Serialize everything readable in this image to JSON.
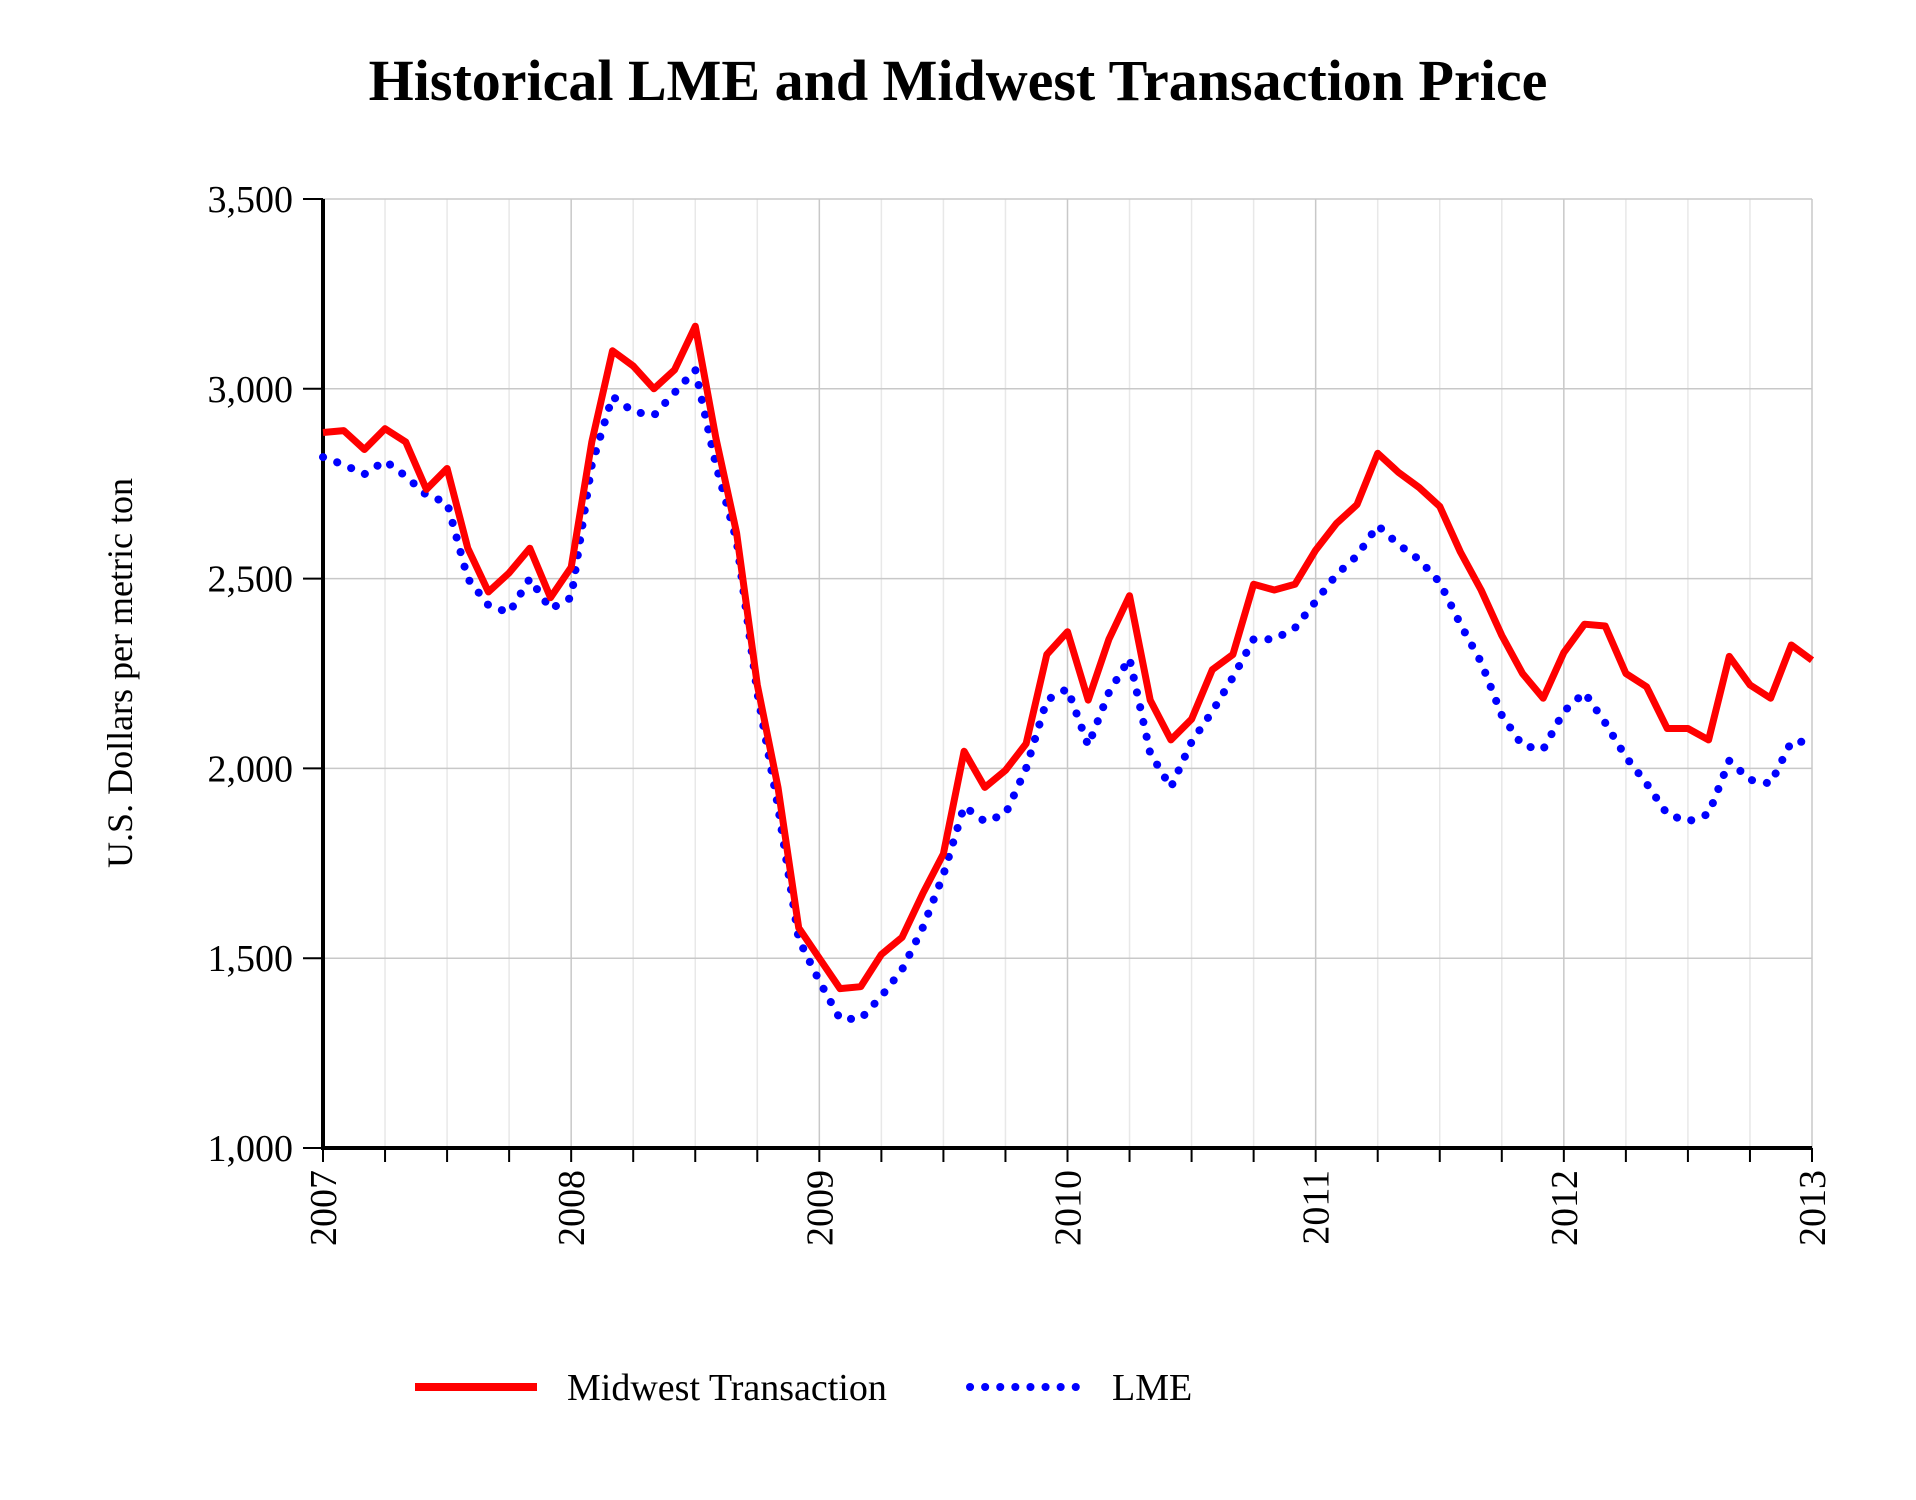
{
  "chart_data": {
    "type": "line",
    "title": "Historical LME and Midwest Transaction Price",
    "xlabel": "",
    "ylabel": "U.S. Dollars per metric ton",
    "ylim": [
      1000,
      3500
    ],
    "yticks": [
      "1,000",
      "1,500",
      "2,000",
      "2,500",
      "3,000",
      "3,500"
    ],
    "ytick_values": [
      1000,
      1500,
      2000,
      2500,
      3000,
      3500
    ],
    "xticks": [
      "2007",
      "2008",
      "2009",
      "2010",
      "2011",
      "2012",
      "2013"
    ],
    "x_start": "2007-01",
    "x_frequency": "monthly",
    "grid": true,
    "legend_position": "bottom",
    "colors": {
      "midwest": "#ff0000",
      "lme": "#0000ff"
    },
    "series": [
      {
        "name": "Midwest Transaction",
        "style": "solid",
        "values": [
          2885,
          2890,
          2840,
          2895,
          2860,
          2735,
          2790,
          2580,
          2465,
          2515,
          2580,
          2450,
          2530,
          2860,
          3100,
          3060,
          3000,
          3050,
          3165,
          2870,
          2620,
          2220,
          1950,
          1580,
          1500,
          1420,
          1425,
          1510,
          1555,
          1670,
          1775,
          2045,
          1950,
          1995,
          2065,
          2300,
          2360,
          2180,
          2340,
          2455,
          2180,
          2075,
          2130,
          2260,
          2300,
          2485,
          2470,
          2485,
          2575,
          2645,
          2695,
          2830,
          2780,
          2740,
          2690,
          2570,
          2470,
          2350,
          2250,
          2185,
          2305,
          2380,
          2375,
          2250,
          2215,
          2105,
          2105,
          2075,
          2295,
          2220,
          2185,
          2325,
          2285
        ]
      },
      {
        "name": "LME",
        "style": "dotted",
        "values": [
          2820,
          2800,
          2775,
          2810,
          2770,
          2720,
          2700,
          2500,
          2430,
          2410,
          2500,
          2420,
          2450,
          2800,
          2980,
          2940,
          2930,
          2990,
          3050,
          2800,
          2600,
          2200,
          1900,
          1550,
          1440,
          1340,
          1340,
          1400,
          1470,
          1580,
          1720,
          1900,
          1860,
          1880,
          2000,
          2180,
          2210,
          2060,
          2200,
          2290,
          2040,
          1950,
          2070,
          2150,
          2240,
          2340,
          2340,
          2370,
          2440,
          2510,
          2560,
          2640,
          2590,
          2550,
          2490,
          2380,
          2280,
          2140,
          2060,
          2050,
          2150,
          2200,
          2120,
          2030,
          1960,
          1880,
          1860,
          1880,
          2020,
          1970,
          1960,
          2070,
          2070
        ]
      }
    ]
  }
}
